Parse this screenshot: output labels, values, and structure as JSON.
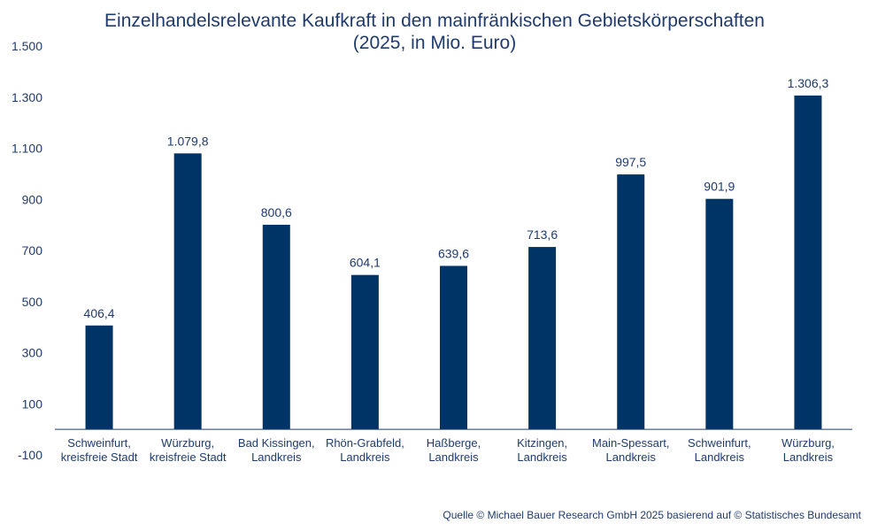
{
  "chart_data": {
    "type": "bar",
    "title_line1": "Einzelhandelsrelevante Kaufkraft in den mainfränkischen Gebietskörperschaften",
    "title_line2": "(2025, in Mio. Euro)",
    "categories": [
      [
        "Schweinfurt,",
        "kreisfreie Stadt"
      ],
      [
        "Würzburg,",
        "kreisfreie Stadt"
      ],
      [
        "Bad Kissingen,",
        "Landkreis"
      ],
      [
        "Rhön-Grabfeld,",
        "Landkreis"
      ],
      [
        "Haßberge,",
        "Landkreis"
      ],
      [
        "Kitzingen,",
        "Landkreis"
      ],
      [
        "Main-Spessart,",
        "Landkreis"
      ],
      [
        "Schweinfurt,",
        "Landkreis"
      ],
      [
        "Würzburg,",
        "Landkreis"
      ]
    ],
    "values": [
      406.4,
      1079.8,
      800.6,
      604.1,
      639.6,
      713.6,
      997.5,
      901.9,
      1306.3
    ],
    "value_labels": [
      "406,4",
      "1.079,8",
      "800,6",
      "604,1",
      "639,6",
      "713,6",
      "997,5",
      "901,9",
      "1.306,3"
    ],
    "yticks": [
      -100,
      100,
      300,
      500,
      700,
      900,
      1100,
      1300,
      1500
    ],
    "ytick_labels": [
      "-100",
      "100",
      "300",
      "500",
      "700",
      "900",
      "1.100",
      "1.300",
      "1.500"
    ],
    "ylim": [
      -100,
      1500
    ],
    "grid": false,
    "bar_color": "#003366",
    "axis_color": "#1f3b6e",
    "source": "Quelle © Michael Bauer Research GmbH 2025 basierend auf © Statistisches Bundesamt"
  }
}
